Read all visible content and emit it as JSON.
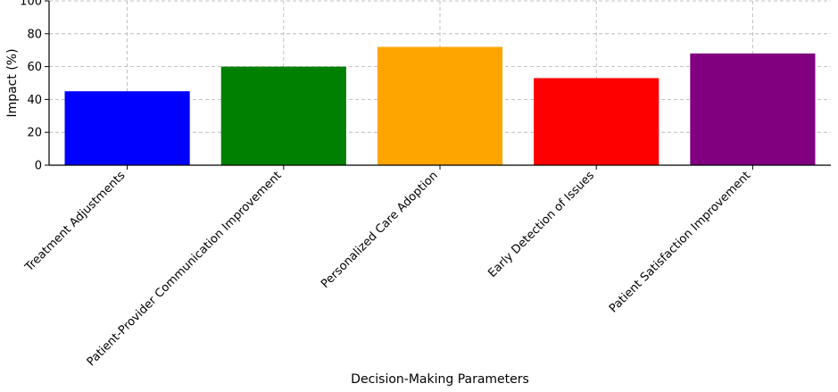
{
  "chart_data": {
    "type": "bar",
    "categories": [
      "Treatment Adjustments",
      "Patient-Provider Communication Improvement",
      "Personalized Care Adoption",
      "Early Detection of Issues",
      "Patient Satisfaction Improvement"
    ],
    "values": [
      45,
      60,
      72,
      53,
      68
    ],
    "colors": [
      "#0000ff",
      "#008000",
      "#ffa500",
      "#ff0000",
      "#800080"
    ],
    "xlabel": "Decision-Making Parameters",
    "ylabel": "Impact (%)",
    "ylim": [
      0,
      100
    ],
    "yticks": [
      0,
      20,
      40,
      60,
      80,
      100
    ],
    "grid": true
  }
}
